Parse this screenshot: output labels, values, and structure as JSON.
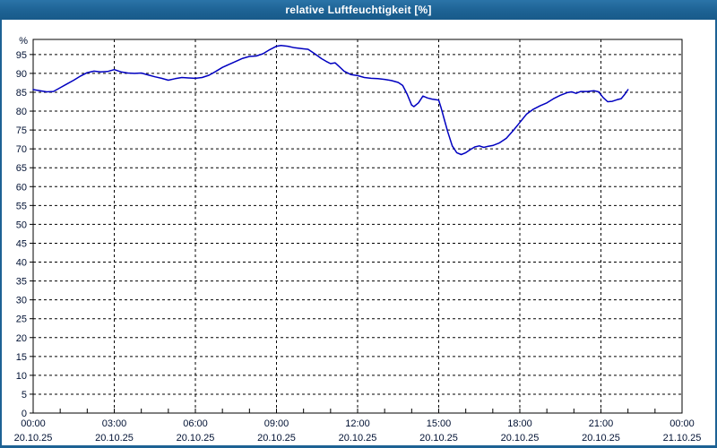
{
  "window": {
    "title": "relative Luftfeuchtigkeit [%]"
  },
  "colors": {
    "titlebar_bg": "#1d6294",
    "titlebar_text": "#ffffff",
    "frame": "#1d6294",
    "chart_bg": "#ffffff",
    "plot_border": "#000000",
    "grid": "#000000",
    "line": "#0000c0",
    "axis_text": "#001133"
  },
  "chart_data": {
    "type": "line",
    "title": "relative Luftfeuchtigkeit [%]",
    "xlabel": "",
    "ylabel": "%",
    "ylim": [
      0,
      99
    ],
    "xlim_hours": [
      0,
      24
    ],
    "grid": true,
    "legend": "none",
    "y_ticks": [
      0,
      5,
      10,
      15,
      20,
      25,
      30,
      35,
      40,
      45,
      50,
      55,
      60,
      65,
      70,
      75,
      80,
      85,
      90,
      95
    ],
    "x_ticks": [
      {
        "time": "00:00",
        "date": "20.10.25"
      },
      {
        "time": "03:00",
        "date": "20.10.25"
      },
      {
        "time": "06:00",
        "date": "20.10.25"
      },
      {
        "time": "09:00",
        "date": "20.10.25"
      },
      {
        "time": "12:00",
        "date": "20.10.25"
      },
      {
        "time": "15:00",
        "date": "20.10.25"
      },
      {
        "time": "18:00",
        "date": "20.10.25"
      },
      {
        "time": "21:00",
        "date": "20.10.25"
      },
      {
        "time": "00:00",
        "date": "21.10.25"
      }
    ],
    "minor_x_tick_every_hours": 1,
    "series": [
      {
        "name": "relative Luftfeuchtigkeit [%]",
        "color": "#0000c0",
        "points": [
          [
            "00:00",
            85.7
          ],
          [
            "00:15",
            85.4
          ],
          [
            "00:30",
            85.1
          ],
          [
            "00:45",
            85.2
          ],
          [
            "01:00",
            86.2
          ],
          [
            "01:15",
            87.2
          ],
          [
            "01:30",
            88.2
          ],
          [
            "01:45",
            89.3
          ],
          [
            "02:00",
            90.2
          ],
          [
            "02:15",
            90.6
          ],
          [
            "02:30",
            90.4
          ],
          [
            "02:45",
            90.5
          ],
          [
            "03:00",
            91.0
          ],
          [
            "03:15",
            90.4
          ],
          [
            "03:30",
            90.1
          ],
          [
            "03:45",
            90.0
          ],
          [
            "04:00",
            90.1
          ],
          [
            "04:15",
            89.6
          ],
          [
            "04:30",
            89.1
          ],
          [
            "04:45",
            88.7
          ],
          [
            "05:00",
            88.2
          ],
          [
            "05:15",
            88.6
          ],
          [
            "05:30",
            88.9
          ],
          [
            "05:45",
            88.8
          ],
          [
            "06:00",
            88.7
          ],
          [
            "06:15",
            88.9
          ],
          [
            "06:30",
            89.5
          ],
          [
            "06:45",
            90.5
          ],
          [
            "07:00",
            91.6
          ],
          [
            "07:15",
            92.4
          ],
          [
            "07:30",
            93.2
          ],
          [
            "07:45",
            94.0
          ],
          [
            "08:00",
            94.5
          ],
          [
            "08:15",
            94.6
          ],
          [
            "08:30",
            95.2
          ],
          [
            "08:45",
            96.3
          ],
          [
            "09:00",
            97.2
          ],
          [
            "09:10",
            97.4
          ],
          [
            "09:25",
            97.2
          ],
          [
            "09:40",
            96.8
          ],
          [
            "10:00",
            96.5
          ],
          [
            "10:10",
            96.4
          ],
          [
            "10:25",
            95.2
          ],
          [
            "10:40",
            93.9
          ],
          [
            "10:50",
            93.2
          ],
          [
            "11:00",
            92.6
          ],
          [
            "11:10",
            92.8
          ],
          [
            "11:20",
            91.7
          ],
          [
            "11:30",
            90.6
          ],
          [
            "11:45",
            89.7
          ],
          [
            "12:00",
            89.4
          ],
          [
            "12:15",
            88.9
          ],
          [
            "12:30",
            88.7
          ],
          [
            "12:45",
            88.6
          ],
          [
            "13:00",
            88.4
          ],
          [
            "13:15",
            88.1
          ],
          [
            "13:30",
            87.6
          ],
          [
            "13:40",
            86.8
          ],
          [
            "13:50",
            84.5
          ],
          [
            "14:00",
            81.6
          ],
          [
            "14:05",
            81.2
          ],
          [
            "14:15",
            82.2
          ],
          [
            "14:25",
            84.0
          ],
          [
            "14:35",
            83.5
          ],
          [
            "14:45",
            83.2
          ],
          [
            "15:00",
            82.9
          ],
          [
            "15:05",
            81.0
          ],
          [
            "15:12",
            78.0
          ],
          [
            "15:20",
            74.5
          ],
          [
            "15:30",
            70.8
          ],
          [
            "15:40",
            69.0
          ],
          [
            "15:50",
            68.5
          ],
          [
            "16:00",
            69.0
          ],
          [
            "16:10",
            69.8
          ],
          [
            "16:20",
            70.5
          ],
          [
            "16:30",
            70.8
          ],
          [
            "16:40",
            70.4
          ],
          [
            "16:50",
            70.7
          ],
          [
            "17:00",
            70.9
          ],
          [
            "17:15",
            71.6
          ],
          [
            "17:30",
            72.8
          ],
          [
            "17:45",
            74.8
          ],
          [
            "18:00",
            77.0
          ],
          [
            "18:15",
            79.2
          ],
          [
            "18:30",
            80.5
          ],
          [
            "18:45",
            81.4
          ],
          [
            "19:00",
            82.2
          ],
          [
            "19:15",
            83.3
          ],
          [
            "19:30",
            84.2
          ],
          [
            "19:45",
            84.9
          ],
          [
            "19:55",
            85.1
          ],
          [
            "20:05",
            84.7
          ],
          [
            "20:15",
            85.2
          ],
          [
            "20:30",
            85.2
          ],
          [
            "20:45",
            85.4
          ],
          [
            "20:55",
            85.1
          ],
          [
            "21:05",
            83.6
          ],
          [
            "21:15",
            82.5
          ],
          [
            "21:25",
            82.6
          ],
          [
            "21:35",
            83.0
          ],
          [
            "21:45",
            83.3
          ],
          [
            "21:52",
            84.3
          ],
          [
            "22:00",
            85.7
          ]
        ]
      }
    ]
  }
}
